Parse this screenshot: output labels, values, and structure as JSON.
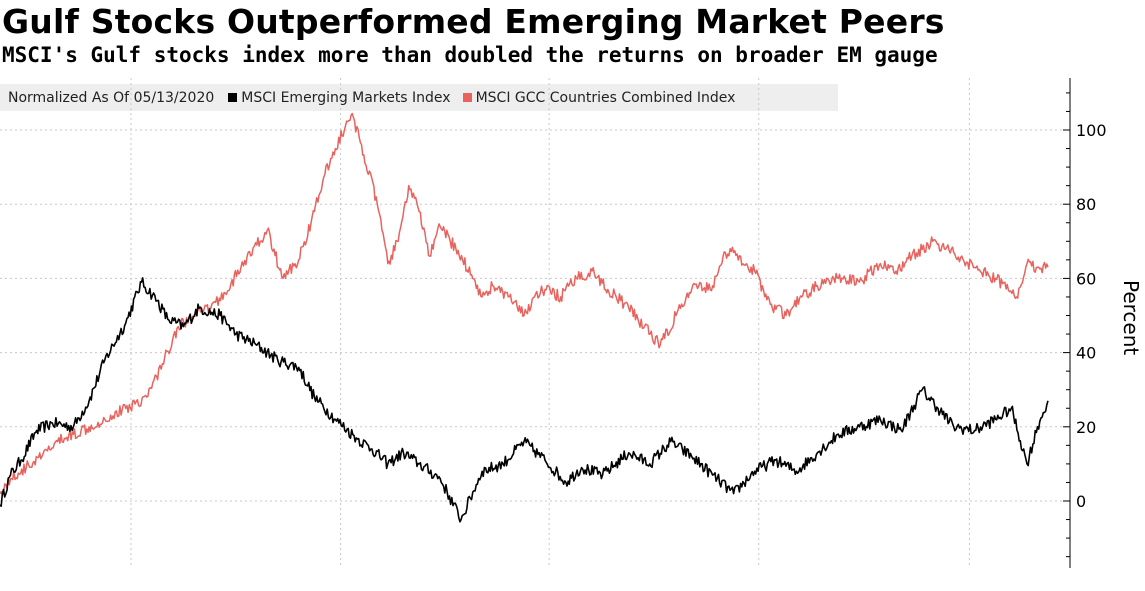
{
  "chart_data": {
    "type": "line",
    "title": "Gulf Stocks Outperformed Emerging Market Peers",
    "subtitle": "MSCI's Gulf stocks index more than doubled the returns on broader EM gauge",
    "note": "Normalized As Of 05/13/2020",
    "ylabel": "Percent",
    "ylim": [
      -18,
      114
    ],
    "yticks": [
      0,
      20,
      40,
      60,
      80,
      100
    ],
    "x_range": [
      0,
      1
    ],
    "x_gridlines": [
      0.125,
      0.325,
      0.524,
      0.724,
      0.925
    ],
    "series": [
      {
        "name": "MSCI Emerging Markets Index",
        "color": "#000000",
        "x": [
          0.0,
          0.01,
          0.02,
          0.035,
          0.05,
          0.07,
          0.085,
          0.1,
          0.12,
          0.135,
          0.15,
          0.16,
          0.175,
          0.19,
          0.21,
          0.225,
          0.245,
          0.265,
          0.285,
          0.3,
          0.32,
          0.34,
          0.355,
          0.37,
          0.385,
          0.4,
          0.42,
          0.44,
          0.46,
          0.48,
          0.5,
          0.52,
          0.54,
          0.555,
          0.575,
          0.6,
          0.62,
          0.64,
          0.66,
          0.68,
          0.7,
          0.72,
          0.74,
          0.76,
          0.78,
          0.8,
          0.82,
          0.84,
          0.86,
          0.88,
          0.895,
          0.91,
          0.93,
          0.95,
          0.965,
          0.98,
          0.99,
          1.0
        ],
        "values": [
          -1,
          7,
          11,
          19,
          21,
          20,
          27,
          38,
          48,
          59,
          54,
          49,
          47,
          52,
          50,
          45,
          42,
          38,
          36,
          28,
          22,
          17,
          14,
          10,
          13,
          10,
          6,
          -5,
          8,
          10,
          16,
          11,
          5,
          9,
          7,
          13,
          10,
          16,
          12,
          7,
          2,
          8,
          11,
          8,
          13,
          18,
          20,
          22,
          19,
          30,
          25,
          20,
          19,
          22,
          25,
          10,
          20,
          27
        ]
      },
      {
        "name": "MSCI GCC Countries Combined Index",
        "color": "#e8635e",
        "x": [
          0.0,
          0.01,
          0.025,
          0.04,
          0.055,
          0.07,
          0.085,
          0.1,
          0.12,
          0.14,
          0.155,
          0.17,
          0.185,
          0.2,
          0.215,
          0.23,
          0.245,
          0.255,
          0.27,
          0.285,
          0.3,
          0.31,
          0.32,
          0.335,
          0.345,
          0.36,
          0.37,
          0.38,
          0.39,
          0.4,
          0.41,
          0.42,
          0.435,
          0.45,
          0.46,
          0.47,
          0.485,
          0.5,
          0.51,
          0.52,
          0.535,
          0.55,
          0.565,
          0.58,
          0.6,
          0.615,
          0.63,
          0.645,
          0.66,
          0.68,
          0.69,
          0.7,
          0.72,
          0.735,
          0.75,
          0.765,
          0.78,
          0.8,
          0.82,
          0.84,
          0.855,
          0.87,
          0.89,
          0.91,
          0.93,
          0.95,
          0.97,
          0.98,
          0.99,
          1.0
        ],
        "values": [
          2,
          6,
          9,
          12,
          16,
          18,
          20,
          22,
          25,
          28,
          37,
          47,
          50,
          52,
          56,
          63,
          69,
          73,
          60,
          65,
          78,
          88,
          95,
          104,
          96,
          80,
          64,
          70,
          85,
          78,
          66,
          74,
          68,
          61,
          55,
          58,
          55,
          50,
          55,
          57,
          55,
          60,
          62,
          57,
          52,
          47,
          42,
          50,
          57,
          58,
          66,
          67,
          62,
          53,
          50,
          55,
          58,
          60,
          59,
          64,
          62,
          66,
          70,
          67,
          63,
          60,
          55,
          64,
          63,
          63
        ]
      }
    ]
  }
}
